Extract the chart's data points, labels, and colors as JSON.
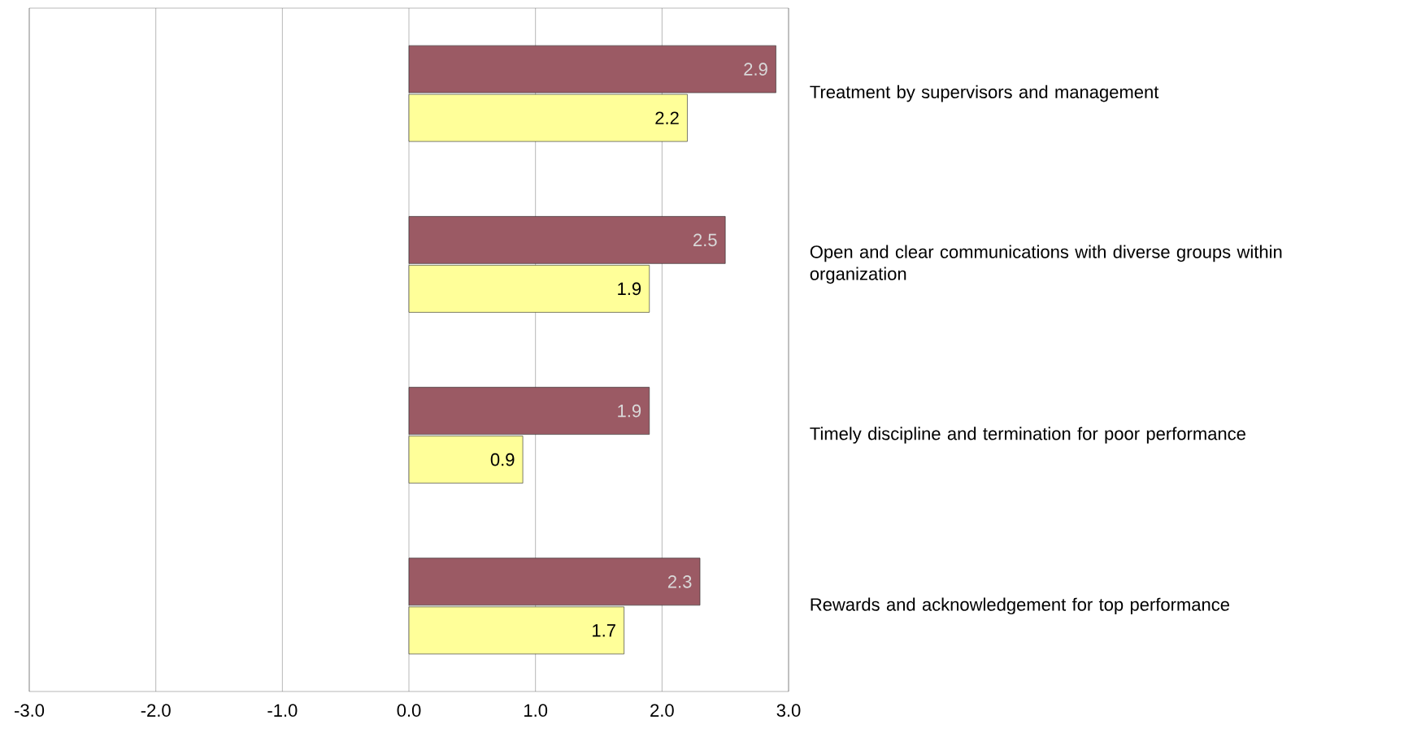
{
  "chart_data": {
    "type": "bar",
    "orientation": "horizontal",
    "categories": [
      "Treatment by supervisors and management",
      "Open and clear communications with diverse groups within organization",
      "Timely discipline and termination for poor performance",
      "Rewards and acknowledgement for top performance"
    ],
    "series": [
      {
        "color": "#ffff99",
        "values": [
          2.2,
          1.9,
          0.9,
          1.7
        ]
      },
      {
        "color": "#9b5a64",
        "values": [
          2.9,
          2.5,
          1.9,
          2.3
        ]
      }
    ],
    "xlim": [
      -3,
      3
    ],
    "xticks": [
      {
        "value": -3,
        "label": "-3.0"
      },
      {
        "value": -2,
        "label": "-2.0"
      },
      {
        "value": -1,
        "label": "-1.0"
      },
      {
        "value": 0,
        "label": "0.0"
      },
      {
        "value": 1,
        "label": "1.0"
      },
      {
        "value": 2,
        "label": "2.0"
      },
      {
        "value": 3,
        "label": "3.0"
      }
    ],
    "grid": "x",
    "data_labels": true
  }
}
